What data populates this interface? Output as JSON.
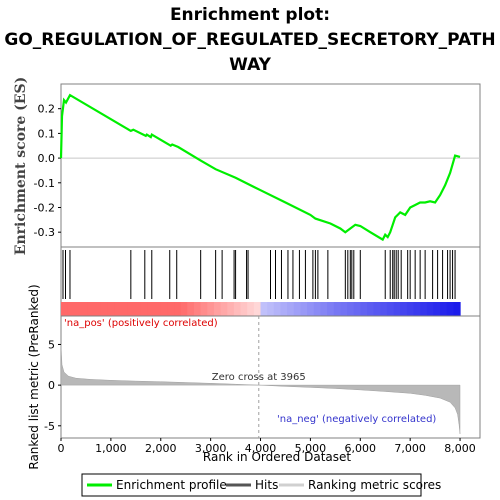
{
  "chart_data": {
    "type": "line",
    "title_lines": [
      "Enrichment plot:",
      "GO_REGULATION_OF_REGULATED_SECRETORY_PATH",
      "WAY"
    ],
    "es_ylabel": "Enrichment score (ES)",
    "rank_ylabel": "Ranked list metric (PreRanked)",
    "xlabel": "Rank in Ordered Dataset",
    "xlim": [
      0,
      8400
    ],
    "x_ticks": [
      0,
      1000,
      2000,
      3000,
      4000,
      5000,
      6000,
      7000,
      8000
    ],
    "x_tick_labels": [
      "0",
      "1,000",
      "2,000",
      "3,000",
      "4,000",
      "5,000",
      "6,000",
      "7,000",
      "8,000"
    ],
    "es_ylim": [
      -0.36,
      0.3
    ],
    "es_ticks": [
      0.2,
      0.1,
      0.0,
      -0.1,
      -0.2,
      -0.3
    ],
    "es_tick_labels": [
      "0.2",
      "0.1",
      "0.0",
      "-0.1",
      "-0.2",
      "-0.3"
    ],
    "rank_ylim": [
      -6.5,
      8.5
    ],
    "rank_ticks": [
      5,
      0,
      -5
    ],
    "rank_tick_labels": [
      "5",
      "0",
      "-5"
    ],
    "zero_cross_rank": 3965,
    "zero_cross_label": "Zero cross at 3965",
    "pos_label": "'na_pos' (positively correlated)",
    "neg_label": "'na_neg' (negatively correlated)",
    "series": [
      {
        "name": "Enrichment profile",
        "color": "#00ee00",
        "x": [
          0,
          20,
          60,
          100,
          180,
          1400,
          1450,
          1700,
          1720,
          1800,
          1820,
          2200,
          2230,
          2350,
          2800,
          3100,
          3500,
          4000,
          4500,
          5000,
          5100,
          5400,
          5600,
          5700,
          5800,
          5900,
          6000,
          6200,
          6450,
          6500,
          6550,
          6600,
          6650,
          6700,
          6750,
          6800,
          6900,
          7000,
          7100,
          7200,
          7300,
          7400,
          7500,
          7600,
          7700,
          7800,
          7900,
          8000
        ],
        "y": [
          0.0,
          0.17,
          0.235,
          0.225,
          0.255,
          0.11,
          0.115,
          0.09,
          0.095,
          0.085,
          0.095,
          0.05,
          0.055,
          0.045,
          -0.01,
          -0.045,
          -0.08,
          -0.13,
          -0.18,
          -0.23,
          -0.245,
          -0.265,
          -0.285,
          -0.3,
          -0.285,
          -0.27,
          -0.275,
          -0.3,
          -0.33,
          -0.31,
          -0.32,
          -0.3,
          -0.27,
          -0.24,
          -0.23,
          -0.22,
          -0.23,
          -0.2,
          -0.19,
          -0.18,
          -0.18,
          -0.175,
          -0.18,
          -0.15,
          -0.11,
          -0.06,
          0.01,
          0.005
        ]
      }
    ],
    "hits": [
      40,
      90,
      180,
      1400,
      1680,
      1820,
      2180,
      2320,
      2800,
      3100,
      3230,
      3470,
      3500,
      3720,
      3750,
      4200,
      4300,
      4420,
      4550,
      4650,
      4780,
      4900,
      5050,
      5100,
      5150,
      5350,
      5700,
      5750,
      5800,
      5830,
      5870,
      6000,
      6500,
      6600,
      6650,
      6680,
      6720,
      6760,
      6820,
      6950,
      7000,
      7100,
      7200,
      7300,
      7450,
      7550,
      7650,
      7750,
      7800,
      7850,
      7900
    ],
    "rank_metric": {
      "x": [
        0,
        20,
        60,
        150,
        300,
        600,
        1000,
        1500,
        2000,
        2500,
        3000,
        3500,
        3965,
        4500,
        5000,
        5500,
        6000,
        6500,
        7000,
        7300,
        7600,
        7800,
        7900,
        7950,
        7980,
        8000
      ],
      "y": [
        5.0,
        2.5,
        1.6,
        1.1,
        0.85,
        0.7,
        0.6,
        0.5,
        0.42,
        0.32,
        0.22,
        0.12,
        0.0,
        -0.15,
        -0.28,
        -0.42,
        -0.58,
        -0.78,
        -1.0,
        -1.25,
        -1.6,
        -2.1,
        -2.8,
        -3.6,
        -4.8,
        -6.0
      ]
    },
    "legend": [
      {
        "label": "Enrichment profile",
        "color": "#00ee00"
      },
      {
        "label": "Hits",
        "color": "#000000"
      },
      {
        "label": "Ranking metric scores",
        "color": "#c0c0c0"
      }
    ]
  }
}
